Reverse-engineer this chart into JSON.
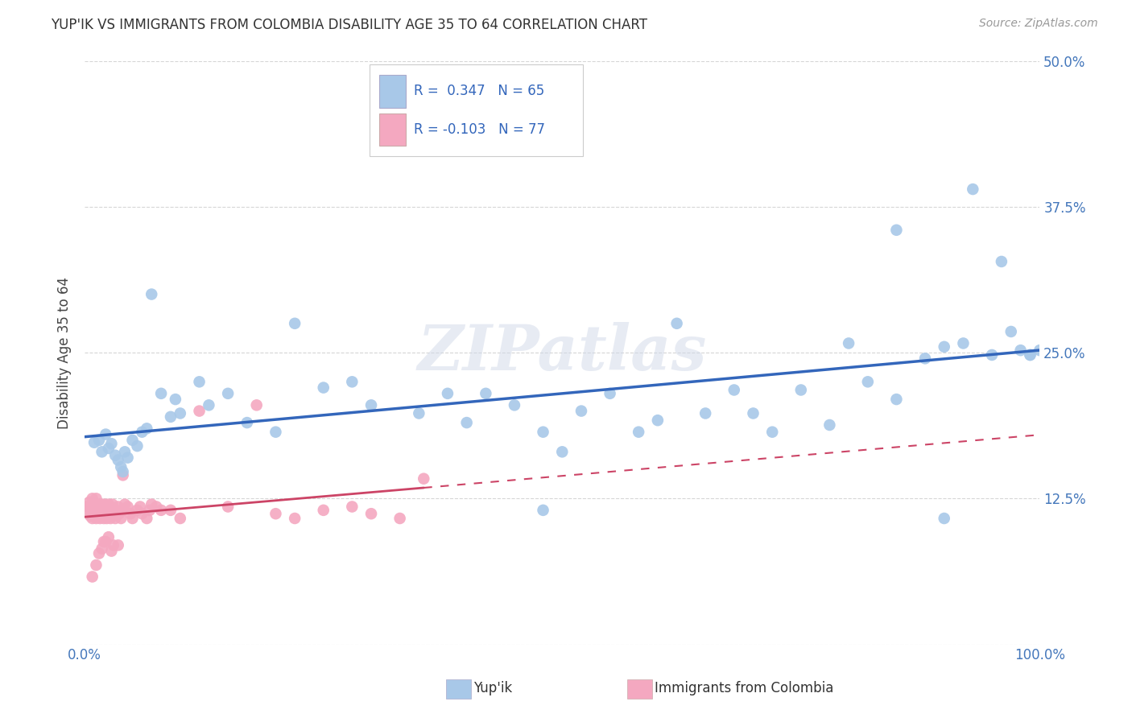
{
  "title": "YUP'IK VS IMMIGRANTS FROM COLOMBIA DISABILITY AGE 35 TO 64 CORRELATION CHART",
  "source": "Source: ZipAtlas.com",
  "ylabel": "Disability Age 35 to 64",
  "xlim": [
    0,
    1.0
  ],
  "ylim": [
    0,
    0.5
  ],
  "legend_text1": "R =  0.347   N = 65",
  "legend_text2": "R = -0.103   N = 77",
  "series1_color": "#a8c8e8",
  "series2_color": "#f4a8c0",
  "line1_color": "#3366bb",
  "line2_color": "#cc4466",
  "legend_text_color": "#3366bb",
  "watermark": "ZIPatlas",
  "background_color": "#ffffff",
  "yupiik_x": [
    0.01,
    0.015,
    0.018,
    0.022,
    0.025,
    0.028,
    0.032,
    0.035,
    0.038,
    0.04,
    0.042,
    0.045,
    0.05,
    0.055,
    0.06,
    0.065,
    0.07,
    0.08,
    0.09,
    0.095,
    0.1,
    0.12,
    0.13,
    0.15,
    0.17,
    0.2,
    0.22,
    0.25,
    0.28,
    0.3,
    0.35,
    0.38,
    0.4,
    0.42,
    0.45,
    0.48,
    0.5,
    0.52,
    0.55,
    0.58,
    0.6,
    0.62,
    0.65,
    0.68,
    0.7,
    0.72,
    0.75,
    0.78,
    0.8,
    0.82,
    0.85,
    0.88,
    0.9,
    0.92,
    0.95,
    0.97,
    0.98,
    0.99,
    1.0,
    0.9,
    0.85,
    0.93,
    0.96,
    0.99,
    0.48
  ],
  "yupiik_y": [
    0.173,
    0.175,
    0.165,
    0.18,
    0.168,
    0.172,
    0.162,
    0.158,
    0.152,
    0.148,
    0.165,
    0.16,
    0.175,
    0.17,
    0.182,
    0.185,
    0.3,
    0.215,
    0.195,
    0.21,
    0.198,
    0.225,
    0.205,
    0.215,
    0.19,
    0.182,
    0.275,
    0.22,
    0.225,
    0.205,
    0.198,
    0.215,
    0.19,
    0.215,
    0.205,
    0.182,
    0.165,
    0.2,
    0.215,
    0.182,
    0.192,
    0.275,
    0.198,
    0.218,
    0.198,
    0.182,
    0.218,
    0.188,
    0.258,
    0.225,
    0.21,
    0.245,
    0.255,
    0.258,
    0.248,
    0.268,
    0.252,
    0.248,
    0.252,
    0.108,
    0.355,
    0.39,
    0.328,
    0.248,
    0.115
  ],
  "colombia_x": [
    0.002,
    0.004,
    0.005,
    0.006,
    0.007,
    0.008,
    0.008,
    0.009,
    0.01,
    0.01,
    0.011,
    0.012,
    0.012,
    0.013,
    0.014,
    0.015,
    0.015,
    0.016,
    0.017,
    0.018,
    0.018,
    0.019,
    0.02,
    0.02,
    0.021,
    0.022,
    0.022,
    0.023,
    0.024,
    0.025,
    0.025,
    0.026,
    0.027,
    0.028,
    0.029,
    0.03,
    0.032,
    0.033,
    0.035,
    0.036,
    0.038,
    0.04,
    0.042,
    0.045,
    0.048,
    0.05,
    0.055,
    0.058,
    0.06,
    0.065,
    0.068,
    0.07,
    0.075,
    0.08,
    0.09,
    0.1,
    0.12,
    0.15,
    0.18,
    0.2,
    0.22,
    0.25,
    0.28,
    0.3,
    0.33,
    0.355,
    0.02,
    0.025,
    0.03,
    0.015,
    0.018,
    0.022,
    0.028,
    0.035,
    0.04,
    0.012,
    0.008
  ],
  "colombia_y": [
    0.118,
    0.115,
    0.122,
    0.11,
    0.118,
    0.125,
    0.108,
    0.115,
    0.12,
    0.112,
    0.118,
    0.125,
    0.108,
    0.115,
    0.12,
    0.112,
    0.118,
    0.108,
    0.115,
    0.12,
    0.112,
    0.118,
    0.108,
    0.115,
    0.12,
    0.112,
    0.118,
    0.108,
    0.115,
    0.12,
    0.112,
    0.118,
    0.108,
    0.115,
    0.12,
    0.112,
    0.108,
    0.115,
    0.118,
    0.112,
    0.108,
    0.115,
    0.12,
    0.118,
    0.112,
    0.108,
    0.115,
    0.118,
    0.112,
    0.108,
    0.115,
    0.12,
    0.118,
    0.115,
    0.115,
    0.108,
    0.2,
    0.118,
    0.205,
    0.112,
    0.108,
    0.115,
    0.118,
    0.112,
    0.108,
    0.142,
    0.088,
    0.092,
    0.085,
    0.078,
    0.082,
    0.088,
    0.08,
    0.085,
    0.145,
    0.068,
    0.058
  ]
}
